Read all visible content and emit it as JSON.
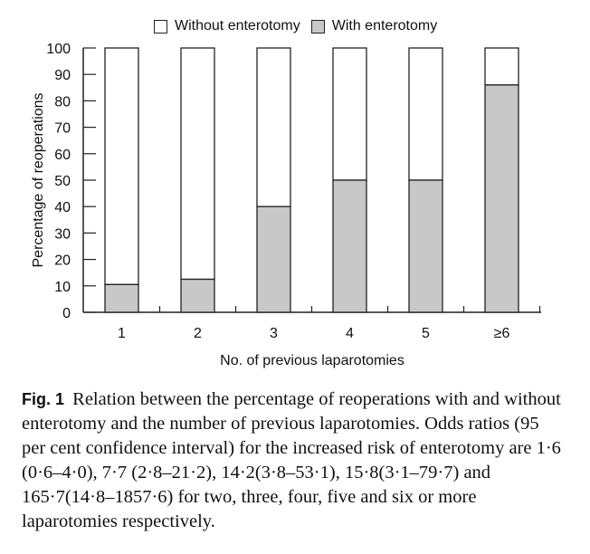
{
  "chart_data": {
    "type": "bar",
    "stacked": true,
    "title": "",
    "xlabel": "No. of previous laparotomies",
    "ylabel": "Percentage of reoperations",
    "categories": [
      "1",
      "2",
      "3",
      "4",
      "5",
      "≥6"
    ],
    "series": [
      {
        "name": "With enterotomy",
        "color": "#c8c8c8",
        "values": [
          10.5,
          12.5,
          40,
          50,
          50,
          86
        ]
      },
      {
        "name": "Without enterotomy",
        "color": "#ffffff",
        "values": [
          89.5,
          87.5,
          60,
          50,
          50,
          14
        ]
      }
    ],
    "ylim": [
      0,
      100
    ],
    "yticks": [
      0,
      10,
      20,
      30,
      40,
      50,
      60,
      70,
      80,
      90,
      100
    ],
    "grid": false,
    "legend_position": "top"
  },
  "legend": {
    "items": [
      {
        "label": "Without enterotomy",
        "color": "#ffffff"
      },
      {
        "label": "With enterotomy",
        "color": "#c8c8c8"
      }
    ]
  },
  "caption": {
    "fig_label": "Fig. 1",
    "text": "Relation between the percentage of reoperations with and without enterotomy and the number of previous laparotomies. Odds ratios (95 per cent confidence interval) for the increased risk of enterotomy are 1·6 (0·6–4·0), 7·7 (2·8–21·2), 14·2(3·8–53·1), 15·8(3·1–79·7) and 165·7(14·8–1857·6) for two, three, four, five and six or more laparotomies respectively."
  }
}
